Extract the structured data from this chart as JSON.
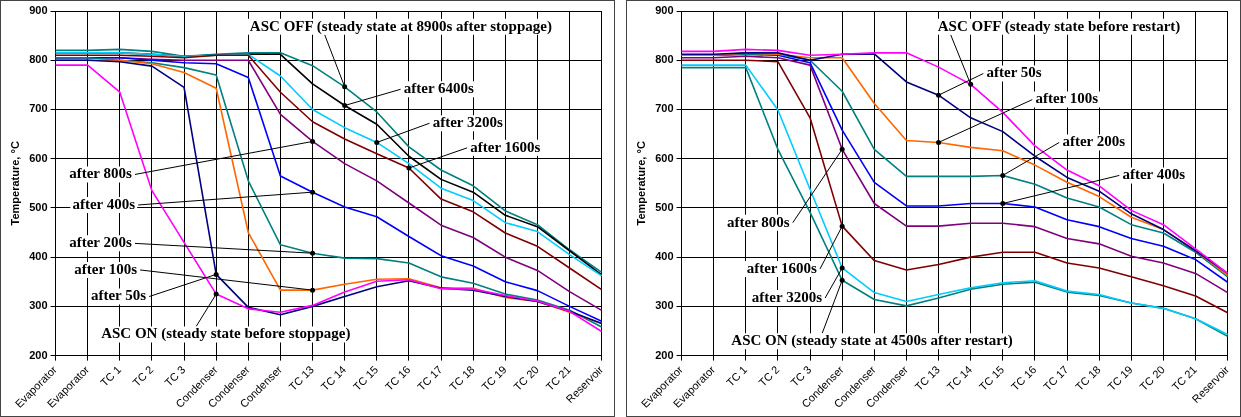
{
  "chart_data": [
    {
      "type": "line",
      "ylabel": "Temperature, °C",
      "categories": [
        "Evaporator",
        "Evaporator",
        "TC 1",
        "TC 2",
        "TC 3",
        "Condenser",
        "Condenser",
        "Condenser",
        "TC 13",
        "TC 14",
        "TC 15",
        "TC 16",
        "TC 17",
        "TC 18",
        "TC 19",
        "TC 20",
        "TC 21",
        "Reservoir"
      ],
      "ylim": [
        200,
        900
      ],
      "yticks": [
        200,
        300,
        400,
        500,
        600,
        700,
        800,
        900
      ],
      "grid": true,
      "line_style": "solid",
      "annotations": [
        {
          "text": "ASC ON (steady state before stoppage)",
          "x": "Condenser",
          "y": 325
        },
        {
          "text": "after 50s",
          "x": "Condenser",
          "y": 365
        },
        {
          "text": "after 100s",
          "x": "TC 13",
          "y": 333
        },
        {
          "text": "after 200s",
          "x": "TC 13",
          "y": 408
        },
        {
          "text": "after 400s",
          "x": "TC 13",
          "y": 532
        },
        {
          "text": "after 800s",
          "x": "TC 13",
          "y": 635
        },
        {
          "text": "after 1600s",
          "x": "TC 16",
          "y": 581
        },
        {
          "text": "after 3200s",
          "x": "TC 15",
          "y": 633
        },
        {
          "text": "after 6400s",
          "x": "TC 14",
          "y": 708
        },
        {
          "text": "ASC OFF (steady state at 8900s after stoppage)",
          "x": "TC 14",
          "y": 746
        }
      ],
      "series": [
        {
          "color": "#ff00ff",
          "values": [
            790,
            790,
            735,
            535,
            430,
            325,
            295,
            288,
            302,
            329,
            351,
            354,
            336,
            335,
            322,
            311,
            290,
            249
          ]
        },
        {
          "color": "#000080",
          "values": [
            800,
            800,
            797,
            788,
            745,
            365,
            298,
            283,
            300,
            320,
            340,
            352,
            337,
            333,
            320,
            310,
            290,
            265
          ]
        },
        {
          "color": "#ff6600",
          "values": [
            800,
            800,
            800,
            793,
            775,
            743,
            450,
            333,
            333,
            345,
            355,
            356,
            338,
            337,
            318,
            310,
            288,
            265
          ]
        },
        {
          "color": "#008080",
          "values": [
            805,
            805,
            800,
            795,
            785,
            770,
            555,
            425,
            408,
            398,
            397,
            388,
            360,
            347,
            325,
            313,
            292,
            258
          ]
        },
        {
          "color": "#0000ff",
          "values": [
            805,
            805,
            805,
            800,
            795,
            793,
            765,
            565,
            532,
            502,
            482,
            442,
            403,
            382,
            350,
            332,
            300,
            270
          ]
        },
        {
          "color": "#800080",
          "values": [
            805,
            805,
            805,
            802,
            800,
            800,
            800,
            690,
            635,
            590,
            555,
            510,
            465,
            440,
            400,
            373,
            330,
            292
          ]
        },
        {
          "color": "#800000",
          "values": [
            810,
            810,
            810,
            808,
            805,
            810,
            810,
            735,
            675,
            640,
            610,
            581,
            518,
            492,
            449,
            422,
            378,
            334
          ]
        },
        {
          "color": "#00ccff",
          "values": [
            815,
            815,
            815,
            812,
            808,
            810,
            812,
            768,
            700,
            663,
            633,
            590,
            540,
            515,
            470,
            452,
            405,
            362
          ]
        },
        {
          "color": "#000000",
          "values": [
            815,
            815,
            815,
            812,
            808,
            810,
            812,
            812,
            752,
            708,
            670,
            605,
            558,
            532,
            485,
            462,
            413,
            364
          ]
        },
        {
          "color": "#008080",
          "values": [
            820,
            820,
            822,
            818,
            808,
            812,
            815,
            815,
            789,
            746,
            695,
            624,
            577,
            545,
            494,
            466,
            415,
            369
          ]
        }
      ]
    },
    {
      "type": "line",
      "ylabel": "Temperature, °C",
      "categories": [
        "Evaporator",
        "Evaporator",
        "TC 1",
        "TC 2",
        "TC 3",
        "Condenser",
        "Condenser",
        "Condenser",
        "TC 13",
        "TC 14",
        "TC 15",
        "TC 16",
        "TC 17",
        "TC 18",
        "TC 19",
        "TC 20",
        "TC 21",
        "Reservoir"
      ],
      "ylim": [
        200,
        900
      ],
      "yticks": [
        200,
        300,
        400,
        500,
        600,
        700,
        800,
        900
      ],
      "grid": true,
      "line_style": "solid",
      "annotations": [
        {
          "text": "ASC OFF (steady state before restart)",
          "x": "TC 14",
          "y": 751
        },
        {
          "text": "after 50s",
          "x": "TC 13",
          "y": 729
        },
        {
          "text": "after 100s",
          "x": "TC 13",
          "y": 633
        },
        {
          "text": "after 200s",
          "x": "TC 15",
          "y": 566
        },
        {
          "text": "after 400s",
          "x": "TC 15",
          "y": 509
        },
        {
          "text": "after 800s",
          "x": "Condenser",
          "y": 619
        },
        {
          "text": "after 1600s",
          "x": "Condenser",
          "y": 463
        },
        {
          "text": "after 3200s",
          "x": "Condenser",
          "y": 378
        },
        {
          "text": "ASC ON (steady state at 4500s after restart)",
          "x": "Condenser",
          "y": 353
        }
      ],
      "series": [
        {
          "color": "#ff00ff",
          "values": [
            818,
            818,
            822,
            820,
            810,
            812,
            815,
            815,
            786,
            751,
            694,
            626,
            577,
            545,
            495,
            466,
            417,
            367
          ]
        },
        {
          "color": "#000080",
          "values": [
            812,
            812,
            815,
            815,
            800,
            812,
            813,
            756,
            729,
            683,
            655,
            605,
            562,
            534,
            488,
            456,
            413,
            367
          ]
        },
        {
          "color": "#ff6600",
          "values": [
            810,
            810,
            815,
            812,
            805,
            805,
            712,
            637,
            633,
            623,
            616,
            587,
            552,
            523,
            481,
            456,
            413,
            363
          ]
        },
        {
          "color": "#008080",
          "values": [
            810,
            810,
            812,
            812,
            800,
            737,
            619,
            564,
            564,
            564,
            566,
            548,
            520,
            502,
            466,
            449,
            410,
            360
          ]
        },
        {
          "color": "#0000ff",
          "values": [
            810,
            810,
            812,
            810,
            795,
            658,
            552,
            504,
            504,
            509,
            509,
            502,
            476,
            462,
            438,
            422,
            395,
            349
          ]
        },
        {
          "color": "#800080",
          "values": [
            805,
            805,
            808,
            805,
            790,
            619,
            509,
            463,
            463,
            469,
            469,
            462,
            438,
            427,
            402,
            388,
            367,
            328
          ]
        },
        {
          "color": "#800000",
          "values": [
            800,
            800,
            800,
            797,
            683,
            463,
            393,
            374,
            385,
            400,
            410,
            410,
            388,
            378,
            360,
            342,
            321,
            287
          ]
        },
        {
          "color": "#00ccff",
          "values": [
            790,
            790,
            790,
            699,
            538,
            378,
            328,
            310,
            324,
            338,
            348,
            352,
            331,
            324,
            307,
            296,
            275,
            243
          ]
        },
        {
          "color": "#008080",
          "values": [
            785,
            785,
            785,
            619,
            491,
            353,
            314,
            301,
            317,
            335,
            345,
            349,
            329,
            322,
            307,
            296,
            275,
            239
          ]
        }
      ]
    }
  ]
}
